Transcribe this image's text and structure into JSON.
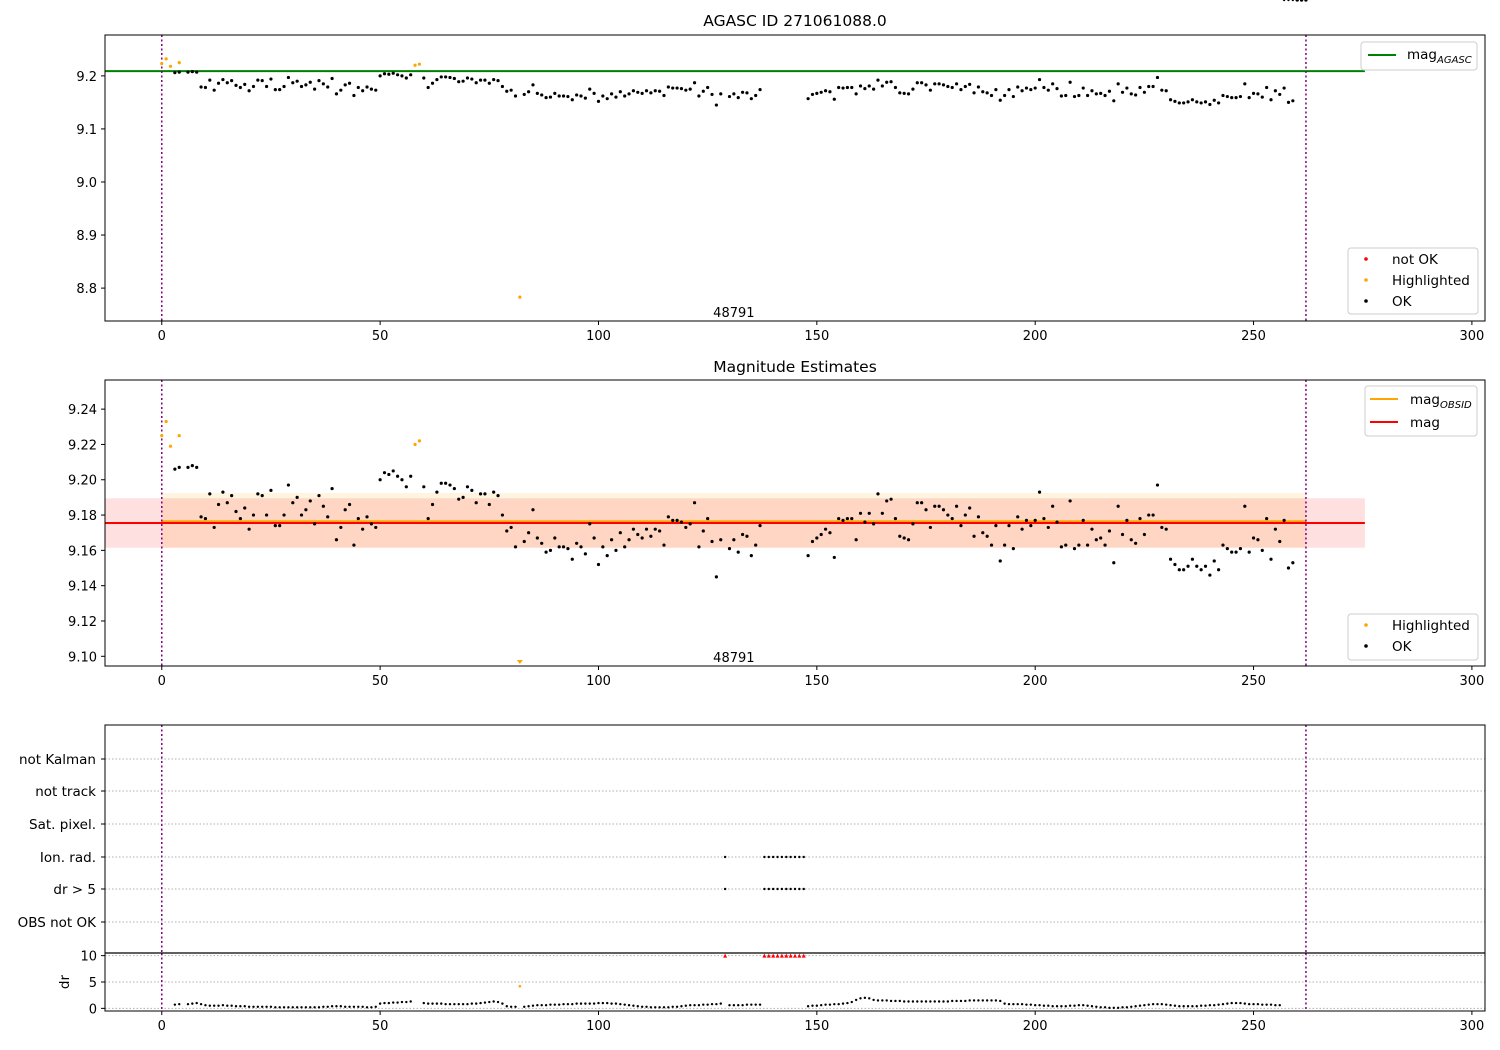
{
  "chart_data": [
    {
      "type": "scatter",
      "title": "AGASC ID 271061088.0",
      "xlabel": "",
      "ylabel": "",
      "xlim": [
        -13,
        303
      ],
      "ylim": [
        8.738,
        9.277
      ],
      "xticks": [
        0,
        50,
        100,
        150,
        200,
        250,
        300
      ],
      "yticks": [
        8.8,
        8.9,
        9.0,
        9.1,
        9.2
      ],
      "ytick_labels": [
        "8.8",
        "8.9",
        "9.0",
        "9.1",
        "9.2"
      ],
      "annotation": {
        "text": "48791",
        "x": 131,
        "y": 8.755
      },
      "vlines": [
        0,
        262
      ],
      "lines": [
        {
          "name": "mag_AGASC",
          "name_main": "mag",
          "name_sub": "AGASC",
          "y": 9.209,
          "x_range": [
            -13,
            275.5
          ],
          "color": "#008000"
        }
      ],
      "legend_upper": {
        "position": "upper right",
        "entries": [
          "mag_AGASC"
        ]
      },
      "legend_lower": {
        "position": "lower right",
        "entries": [
          {
            "label": "not OK",
            "color": "#ff0000"
          },
          {
            "label": "Highlighted",
            "color": "#ffa500"
          },
          {
            "label": "OK",
            "color": "#000000"
          }
        ]
      },
      "series": [
        {
          "name": "Highlighted",
          "color": "#ffa500",
          "x": [
            0,
            1,
            2,
            4,
            58,
            59,
            82
          ],
          "y": [
            9.223,
            9.232,
            9.218,
            9.225,
            9.22,
            9.222,
            8.783
          ]
        },
        {
          "name": "OK",
          "color": "#000000"
        }
      ]
    },
    {
      "type": "scatter",
      "title": "Magnitude Estimates",
      "xlabel": "",
      "ylabel": "",
      "xlim": [
        -13,
        303
      ],
      "ylim": [
        9.0945,
        9.2565
      ],
      "xticks": [
        0,
        50,
        100,
        150,
        200,
        250,
        300
      ],
      "yticks": [
        9.1,
        9.12,
        9.14,
        9.16,
        9.18,
        9.2,
        9.22,
        9.24
      ],
      "ytick_labels": [
        "9.10",
        "9.12",
        "9.14",
        "9.16",
        "9.18",
        "9.20",
        "9.22",
        "9.24"
      ],
      "annotation": {
        "text": "48791",
        "x": 131,
        "y": 9.0995
      },
      "vlines": [
        0,
        262
      ],
      "lines": [
        {
          "name": "mag_OBSID",
          "name_main": "mag",
          "name_sub": "OBSID",
          "y": 9.1765,
          "x_range": [
            0,
            262
          ],
          "color": "#ffa500"
        },
        {
          "name": "mag",
          "y": 9.1755,
          "x_range": [
            -13,
            275.5
          ],
          "color": "#ff0000"
        }
      ],
      "bands": [
        {
          "color": "#ffa500",
          "opacity": 0.12,
          "y_range": [
            9.1615,
            9.1925
          ],
          "x_range": [
            0,
            262
          ]
        },
        {
          "color": "#ff0000",
          "opacity": 0.12,
          "y_range": [
            9.1615,
            9.1895
          ],
          "x_range": [
            -13,
            275.5
          ]
        }
      ],
      "legend_upper": {
        "position": "upper right",
        "entries": [
          "mag_OBSID",
          "mag"
        ]
      },
      "legend_lower": {
        "position": "lower right",
        "entries": [
          {
            "label": "Highlighted",
            "color": "#ffa500"
          },
          {
            "label": "OK",
            "color": "#000000"
          }
        ]
      },
      "series": [
        {
          "name": "Highlighted",
          "color": "#ffa500",
          "x": [
            0,
            1,
            2,
            4,
            58,
            59
          ],
          "y": [
            9.225,
            9.233,
            9.219,
            9.225,
            9.22,
            9.222
          ]
        },
        {
          "name": "OK",
          "color": "#000000"
        }
      ],
      "off_scale_marker": {
        "x": 82,
        "color": "#ffa500"
      }
    },
    {
      "type": "scatter",
      "title": "",
      "xlabel": "",
      "ylabel": "",
      "xlim": [
        -13,
        303
      ],
      "categories": [
        "not Kalman",
        "not track",
        "Sat. pixel.",
        "Ion. rad.",
        "dr > 5",
        "OBS not OK"
      ],
      "vlines": [
        0,
        262
      ],
      "flags": {
        "Ion. rad.": [
          129,
          138,
          139,
          140,
          141,
          142,
          143,
          144,
          145,
          146,
          147
        ],
        "dr > 5": [
          129,
          138,
          139,
          140,
          141,
          142,
          143,
          144,
          145,
          146,
          147
        ]
      }
    },
    {
      "type": "scatter",
      "title": "",
      "xlabel": "",
      "ylabel": "dr",
      "xlim": [
        -13,
        303
      ],
      "ylim": [
        -0.5,
        10.5
      ],
      "xticks": [
        0,
        50,
        100,
        150,
        200,
        250,
        300
      ],
      "yticks": [
        0,
        5,
        10
      ],
      "ytick_labels": [
        "0",
        "5",
        "10"
      ],
      "vlines": [
        0,
        262
      ],
      "series": [
        {
          "name": "OK",
          "color": "#000000"
        },
        {
          "name": "Highlighted",
          "color": "#ffa500",
          "x": [
            82
          ],
          "y": [
            4.2
          ]
        },
        {
          "name": "not OK",
          "color": "#ff0000",
          "x": [
            129,
            138,
            139,
            140,
            141,
            142,
            143,
            144,
            145,
            146,
            147
          ],
          "y": [
            10,
            10,
            10,
            10,
            10,
            10,
            10,
            10,
            10,
            10,
            10
          ]
        }
      ]
    }
  ],
  "ok_points": {
    "x": [
      3,
      4,
      6,
      7,
      8,
      9,
      10,
      11,
      12,
      13,
      14,
      15,
      16,
      17,
      18,
      19,
      20,
      21,
      22,
      23,
      24,
      25,
      26,
      27,
      28,
      29,
      30,
      31,
      32,
      33,
      34,
      35,
      36,
      37,
      38,
      39,
      40,
      41,
      42,
      43,
      44,
      45,
      46,
      47,
      48,
      49,
      50,
      51,
      52,
      53,
      54,
      55,
      56,
      57,
      60,
      61,
      62,
      63,
      64,
      65,
      66,
      67,
      68,
      69,
      70,
      71,
      72,
      73,
      74,
      75,
      76,
      77,
      78,
      79,
      80,
      81,
      83,
      84,
      85,
      86,
      87,
      88,
      89,
      90,
      91,
      92,
      93,
      94,
      95,
      96,
      97,
      98,
      99,
      100,
      101,
      102,
      103,
      104,
      105,
      106,
      107,
      108,
      109,
      110,
      111,
      112,
      113,
      114,
      115,
      116,
      117,
      118,
      119,
      120,
      121,
      122,
      123,
      124,
      125,
      126,
      127,
      128,
      130,
      131,
      132,
      133,
      134,
      135,
      136,
      137,
      148,
      149,
      150,
      151,
      152,
      153,
      154,
      155,
      156,
      157,
      158,
      159,
      160,
      161,
      162,
      163,
      164,
      165,
      166,
      167,
      168,
      169,
      170,
      171,
      172,
      173,
      174,
      175,
      176,
      177,
      178,
      179,
      180,
      181,
      182,
      183,
      184,
      185,
      186,
      187,
      188,
      189,
      190,
      191,
      192,
      193,
      194,
      195,
      196,
      197,
      198,
      199,
      200,
      201,
      202,
      203,
      204,
      205,
      206,
      207,
      208,
      209,
      210,
      211,
      212,
      213,
      214,
      215,
      216,
      217,
      218,
      219,
      220,
      221,
      222,
      223,
      224,
      225,
      226,
      227,
      228,
      229,
      230,
      231,
      232,
      233,
      234,
      235,
      236,
      237,
      238,
      239,
      240,
      241,
      242,
      243,
      244,
      245,
      246,
      247,
      248,
      249,
      250,
      251,
      252,
      253,
      254,
      255,
      256,
      257,
      258,
      259,
      260,
      261,
      262
    ],
    "mag": [
      9.206,
      9.207,
      9.207,
      9.208,
      9.207,
      9.179,
      9.178,
      9.192,
      9.173,
      9.186,
      9.193,
      9.187,
      9.191,
      9.182,
      9.178,
      9.184,
      9.172,
      9.18,
      9.192,
      9.191,
      9.18,
      9.194,
      9.174,
      9.174,
      9.18,
      9.197,
      9.187,
      9.19,
      9.18,
      9.183,
      9.188,
      9.175,
      9.191,
      9.185,
      9.179,
      9.195,
      9.166,
      9.173,
      9.183,
      9.186,
      9.163,
      9.178,
      9.172,
      9.179,
      9.175,
      9.173,
      9.2,
      9.204,
      9.203,
      9.205,
      9.202,
      9.2,
      9.196,
      9.202,
      9.196,
      9.178,
      9.186,
      9.193,
      9.198,
      9.198,
      9.197,
      9.195,
      9.189,
      9.19,
      9.196,
      9.194,
      9.187,
      9.192,
      9.192,
      9.186,
      9.193,
      9.191,
      9.18,
      9.171,
      9.173,
      9.162,
      9.165,
      9.17,
      9.183,
      9.167,
      9.164,
      9.159,
      9.16,
      9.167,
      9.162,
      9.162,
      9.161,
      9.155,
      9.164,
      9.162,
      9.158,
      9.175,
      9.167,
      9.152,
      9.162,
      9.157,
      9.166,
      9.16,
      9.17,
      9.162,
      9.166,
      9.172,
      9.169,
      9.167,
      9.172,
      9.168,
      9.172,
      9.171,
      9.163,
      9.179,
      9.177,
      9.177,
      9.176,
      9.173,
      9.175,
      9.187,
      9.162,
      9.171,
      9.178,
      9.165,
      9.145,
      9.166,
      9.161,
      9.166,
      9.159,
      9.169,
      9.168,
      9.157,
      9.163,
      9.174,
      9.157,
      9.165,
      9.167,
      9.169,
      9.172,
      9.17,
      9.156,
      9.178,
      9.177,
      9.178,
      9.178,
      9.166,
      9.181,
      9.176,
      9.181,
      9.175,
      9.192,
      9.181,
      9.188,
      9.189,
      9.178,
      9.168,
      9.167,
      9.166,
      9.175,
      9.187,
      9.187,
      9.183,
      9.173,
      9.185,
      9.185,
      9.183,
      9.18,
      9.178,
      9.185,
      9.174,
      9.18,
      9.184,
      9.168,
      9.179,
      9.17,
      9.168,
      9.163,
      9.174,
      9.154,
      9.163,
      9.174,
      9.161,
      9.179,
      9.172,
      9.177,
      9.174,
      9.177,
      9.193,
      9.178,
      9.173,
      9.185,
      9.176,
      9.162,
      9.163,
      9.188,
      9.161,
      9.163,
      9.177,
      9.163,
      9.172,
      9.166,
      9.167,
      9.163,
      9.171,
      9.153,
      9.185,
      9.169,
      9.177,
      9.166,
      9.164,
      9.178,
      9.169,
      9.18,
      9.18,
      9.197,
      9.173,
      9.172,
      9.155,
      9.152,
      9.149,
      9.149,
      9.151,
      9.155,
      9.151,
      9.149,
      9.151,
      9.146,
      9.154,
      9.149,
      9.163,
      9.161,
      9.159,
      9.159,
      9.161,
      9.185,
      9.159,
      9.167,
      9.166,
      9.16,
      9.178,
      9.155,
      9.172,
      9.165,
      9.177,
      9.15,
      9.153
    ],
    "dr": [
      0.7,
      0.8,
      0.8,
      0.9,
      1.0,
      0.8,
      0.6,
      0.5,
      0.5,
      0.5,
      0.6,
      0.5,
      0.5,
      0.4,
      0.4,
      0.4,
      0.3,
      0.3,
      0.3,
      0.3,
      0.3,
      0.3,
      0.2,
      0.2,
      0.2,
      0.2,
      0.2,
      0.2,
      0.2,
      0.2,
      0.2,
      0.2,
      0.2,
      0.3,
      0.3,
      0.4,
      0.4,
      0.4,
      0.3,
      0.3,
      0.3,
      0.3,
      0.3,
      0.2,
      0.2,
      0.3,
      0.9,
      1.0,
      1.0,
      1.1,
      1.1,
      1.2,
      1.2,
      1.3,
      1.0,
      0.9,
      0.9,
      0.9,
      0.9,
      0.8,
      0.8,
      0.8,
      0.8,
      0.8,
      0.8,
      0.9,
      0.9,
      1.0,
      1.1,
      1.2,
      1.3,
      1.2,
      0.9,
      0.4,
      0.3,
      0.3,
      0.3,
      0.4,
      0.5,
      0.6,
      0.6,
      0.6,
      0.7,
      0.7,
      0.7,
      0.8,
      0.8,
      0.8,
      0.9,
      0.9,
      0.9,
      0.9,
      0.9,
      1.0,
      1.0,
      1.0,
      0.9,
      0.9,
      0.8,
      0.7,
      0.6,
      0.5,
      0.4,
      0.3,
      0.3,
      0.2,
      0.2,
      0.2,
      0.2,
      0.2,
      0.3,
      0.3,
      0.4,
      0.5,
      0.6,
      0.6,
      0.6,
      0.7,
      0.7,
      0.8,
      0.8,
      0.9,
      0.6,
      0.6,
      0.6,
      0.6,
      0.7,
      0.7,
      0.7,
      0.7,
      0.4,
      0.5,
      0.5,
      0.6,
      0.7,
      0.7,
      0.8,
      0.8,
      0.9,
      1.0,
      1.2,
      1.6,
      1.9,
      2.0,
      1.9,
      1.6,
      1.5,
      1.5,
      1.5,
      1.4,
      1.4,
      1.4,
      1.3,
      1.3,
      1.3,
      1.3,
      1.3,
      1.3,
      1.3,
      1.3,
      1.3,
      1.3,
      1.3,
      1.4,
      1.4,
      1.4,
      1.4,
      1.5,
      1.5,
      1.5,
      1.5,
      1.5,
      1.5,
      1.5,
      1.4,
      0.9,
      0.8,
      0.8,
      0.8,
      0.8,
      0.7,
      0.7,
      0.6,
      0.6,
      0.5,
      0.5,
      0.4,
      0.4,
      0.4,
      0.4,
      0.5,
      0.5,
      0.6,
      0.6,
      0.5,
      0.4,
      0.3,
      0.2,
      0.2,
      0.1,
      0.1,
      0.1,
      0.2,
      0.2,
      0.3,
      0.4,
      0.5,
      0.6,
      0.7,
      0.8,
      0.8,
      0.8,
      0.7,
      0.6,
      0.5,
      0.4,
      0.4,
      0.4,
      0.4,
      0.4,
      0.5,
      0.5,
      0.6,
      0.6,
      0.7,
      0.8,
      0.9,
      1.0,
      1.0,
      1.0,
      0.9,
      0.8,
      0.8,
      0.8,
      0.7,
      0.7,
      0.7,
      0.6,
      0.6
    ]
  }
}
